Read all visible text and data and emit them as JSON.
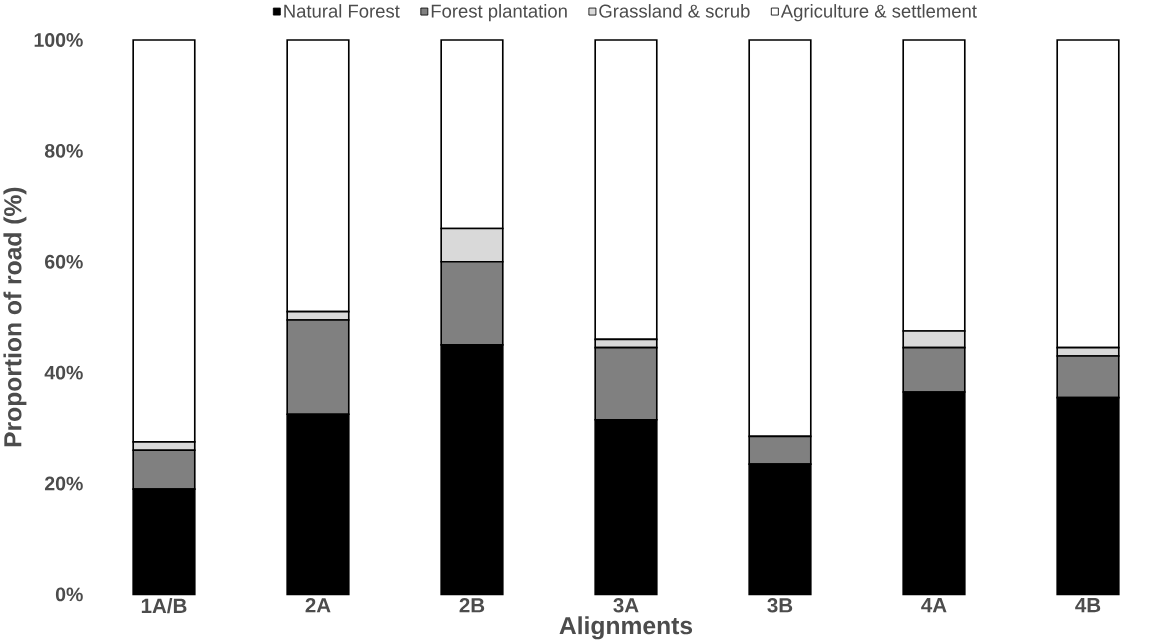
{
  "chart_data": {
    "type": "bar",
    "stacked": true,
    "xlabel": "Alignments",
    "ylabel": "Proportion of road (%)",
    "categories": [
      "1A/B",
      "2A",
      "2B",
      "3A",
      "3B",
      "4A",
      "4B"
    ],
    "series": [
      {
        "name": "Natural Forest",
        "color": "#000000",
        "values": [
          19,
          32.5,
          45,
          31.5,
          23.5,
          36.5,
          35.5
        ]
      },
      {
        "name": "Forest plantation",
        "color": "#808080",
        "values": [
          7,
          17,
          15,
          13,
          5,
          8,
          7.5
        ]
      },
      {
        "name": "Grassland & scrub",
        "color": "#d9d9d9",
        "values": [
          1.5,
          1.5,
          6,
          1.5,
          null,
          3,
          1.5
        ]
      },
      {
        "name": "Agriculture & settlement",
        "color": "#ffffff",
        "values": [
          72.5,
          49,
          34,
          54,
          71.5,
          52.5,
          55.5
        ]
      }
    ],
    "ylim": [
      0,
      100
    ],
    "yticks": [
      {
        "value": 0,
        "label": "0%"
      },
      {
        "value": 20,
        "label": "20%"
      },
      {
        "value": 40,
        "label": "40%"
      },
      {
        "value": 60,
        "label": "60%"
      },
      {
        "value": 80,
        "label": "80%"
      },
      {
        "value": 100,
        "label": "100%"
      }
    ],
    "legend": "top"
  }
}
